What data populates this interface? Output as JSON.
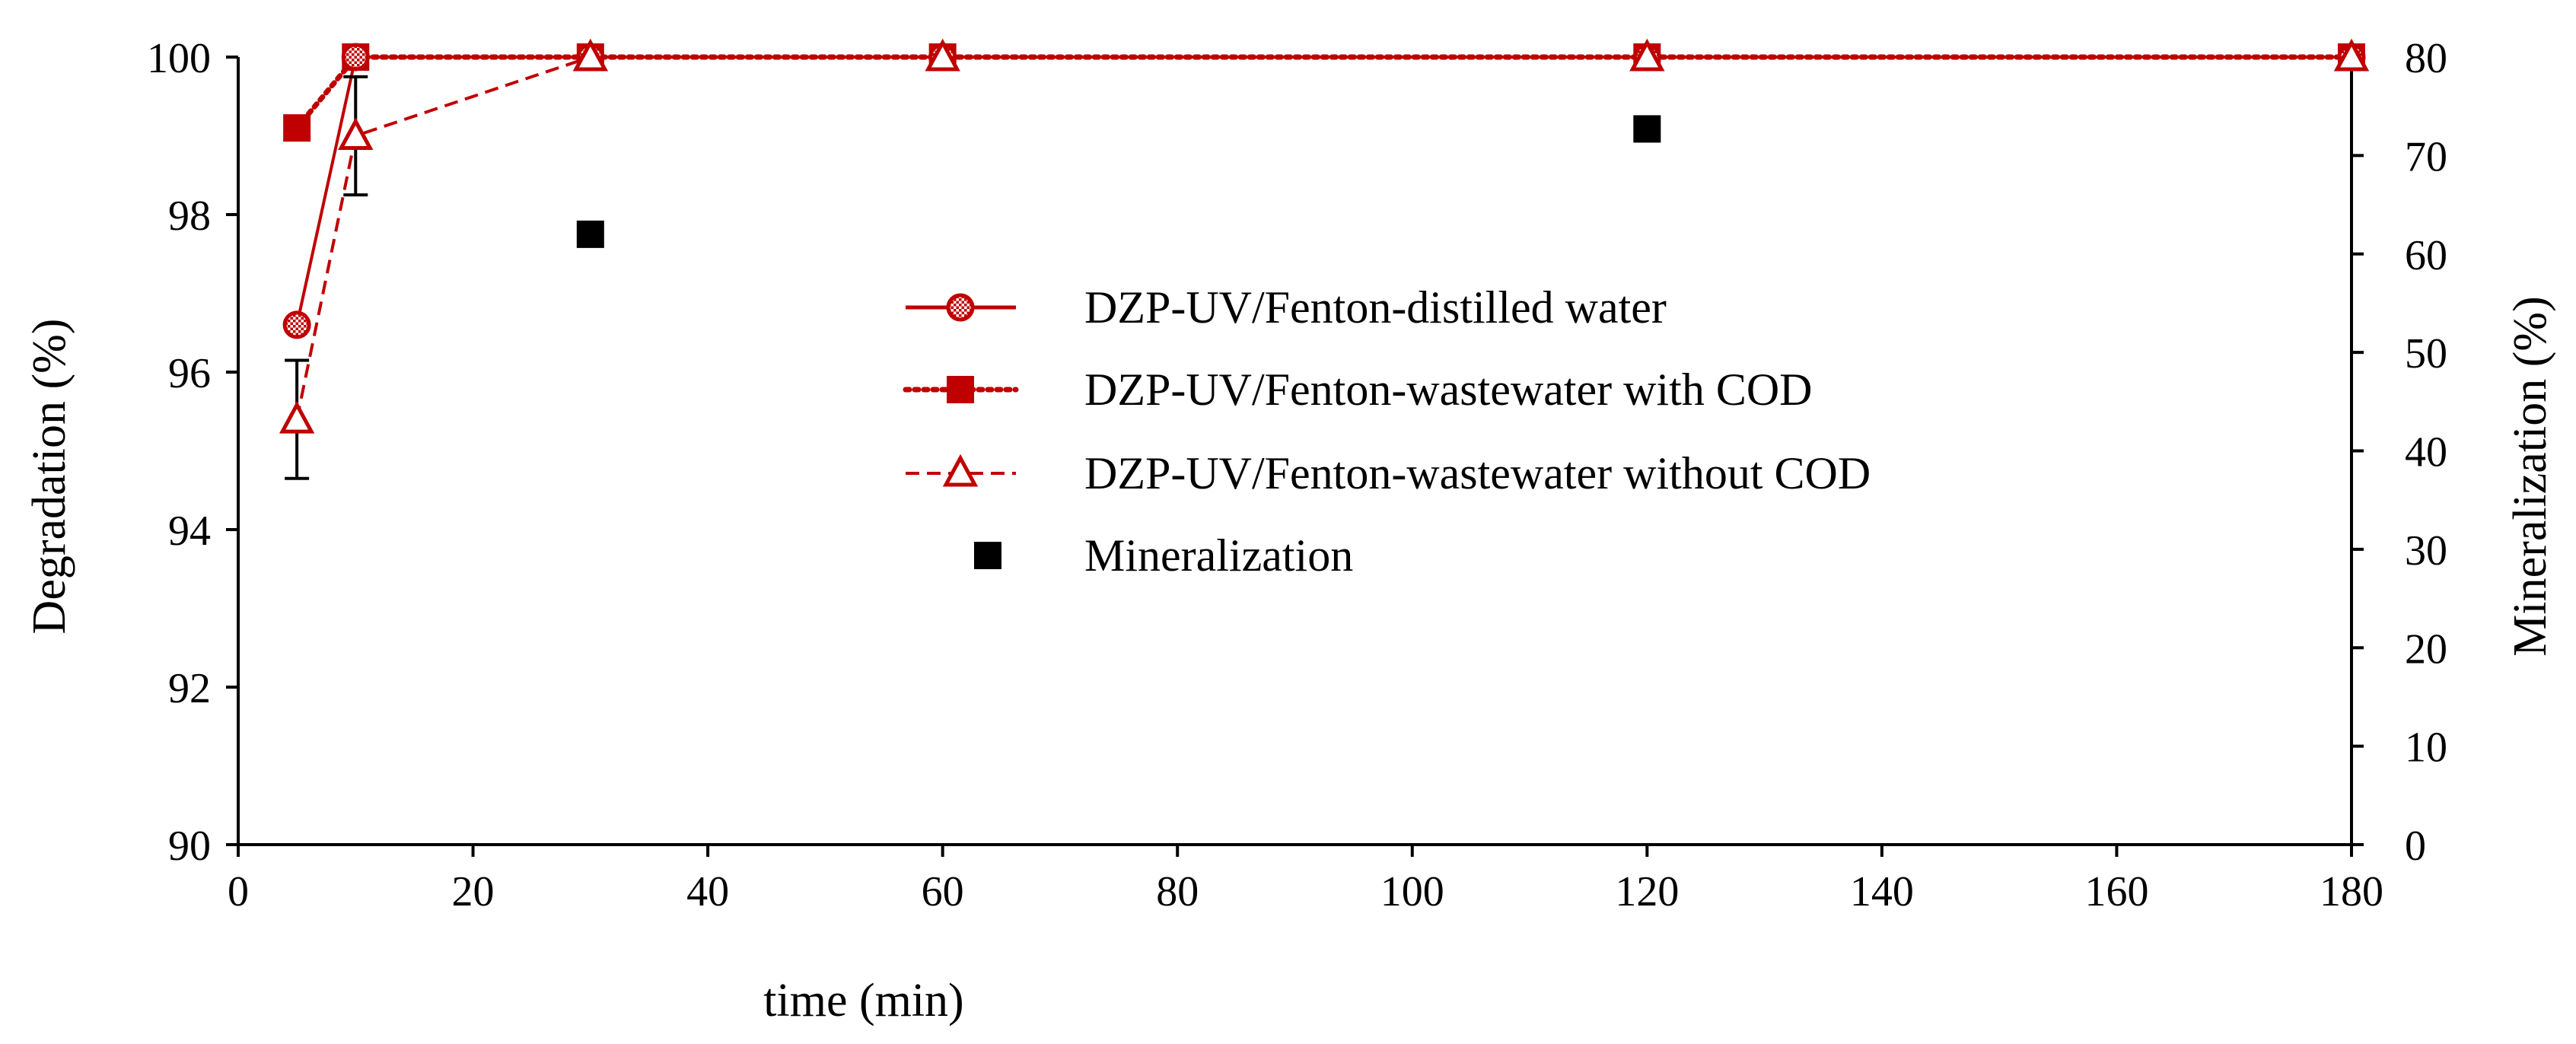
{
  "colors": {
    "series_red": "#c00000",
    "mineralization": "#000000",
    "axis": "#000000"
  },
  "chart_data": {
    "type": "scatter",
    "xlabel": "time (min)",
    "ylabel_left": "Degradation (%)",
    "ylabel_right": "Mineralization (%)",
    "xlim": [
      0,
      180
    ],
    "ylim_left": [
      90,
      100
    ],
    "ylim_right": [
      0,
      80
    ],
    "x_ticks": [
      "0",
      "20",
      "40",
      "60",
      "80",
      "100",
      "120",
      "140",
      "160",
      "180"
    ],
    "y_left_ticks": [
      "90",
      "92",
      "94",
      "96",
      "98",
      "100"
    ],
    "y_right_ticks": [
      "0",
      "10",
      "20",
      "30",
      "40",
      "50",
      "60",
      "70",
      "80"
    ],
    "grid": false,
    "legend_position": "center",
    "series": [
      {
        "name": "DZP-UV/Fenton-distilled water",
        "axis": "left",
        "line": "solid",
        "marker": "hatched-circle",
        "x": [
          5,
          10,
          30,
          60,
          120,
          180
        ],
        "y": [
          96.6,
          100,
          100,
          100,
          100,
          100
        ]
      },
      {
        "name": "DZP-UV/Fenton-wastewater with COD",
        "axis": "left",
        "line": "dotted",
        "marker": "filled-square",
        "x": [
          5,
          10,
          30,
          60,
          120,
          180
        ],
        "y": [
          99.1,
          100,
          100,
          100,
          100,
          100
        ]
      },
      {
        "name": "DZP-UV/Fenton-wastewater without COD",
        "axis": "left",
        "line": "dashed",
        "marker": "open-triangle",
        "x": [
          5,
          10,
          30,
          60,
          120,
          180
        ],
        "y": [
          95.4,
          99.0,
          100,
          100,
          100,
          100
        ],
        "error": [
          0.75,
          0.75,
          0,
          0,
          0,
          0
        ]
      },
      {
        "name": "Mineralization",
        "axis": "right",
        "line": "none",
        "marker": "black-square",
        "x": [
          30,
          120
        ],
        "y": [
          62,
          72.7
        ]
      }
    ]
  }
}
